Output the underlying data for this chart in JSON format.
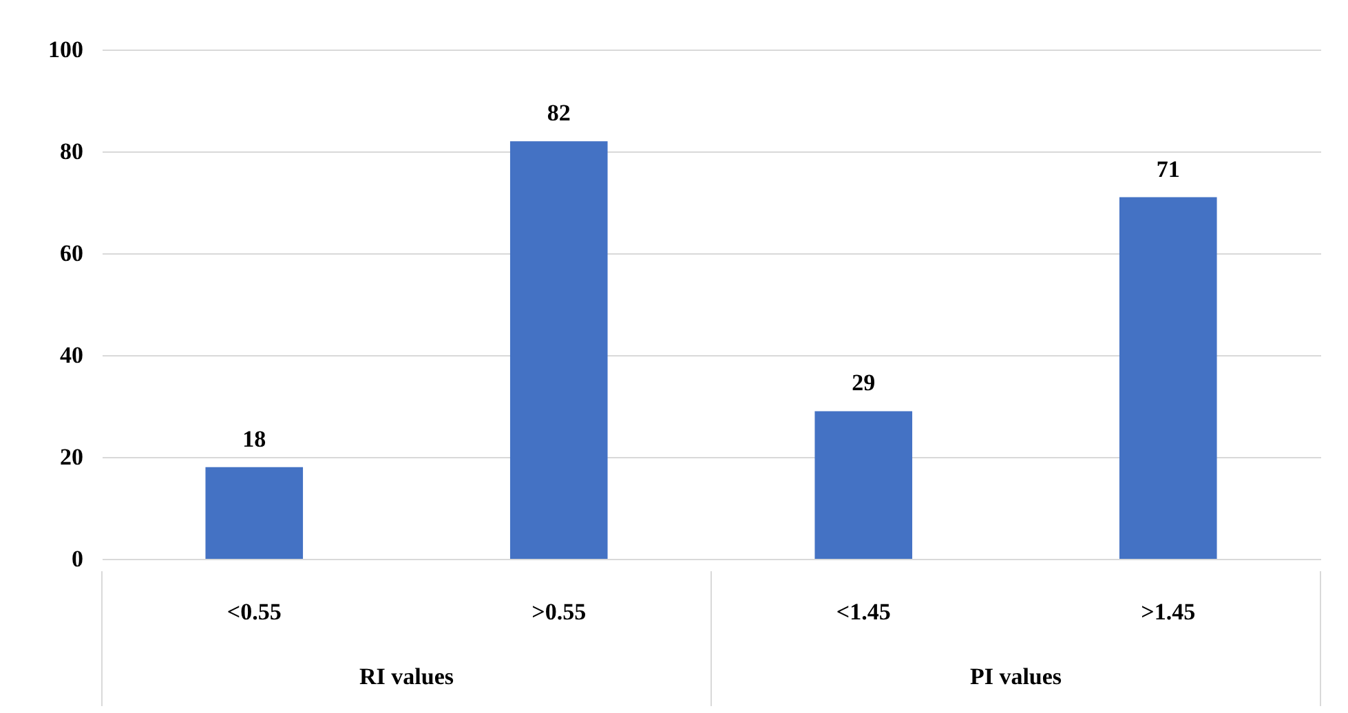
{
  "chart_data": {
    "type": "bar",
    "categories": [
      "<0.55",
      ">0.55",
      "<1.45",
      ">1.45"
    ],
    "values": [
      18,
      82,
      29,
      71
    ],
    "color": "#4472c4",
    "ylim": [
      0,
      100
    ],
    "yticks": [
      0,
      20,
      40,
      60,
      80,
      100
    ],
    "grid": "y",
    "data_labels": true,
    "annotations": [
      "RI values",
      "PI values"
    ]
  }
}
